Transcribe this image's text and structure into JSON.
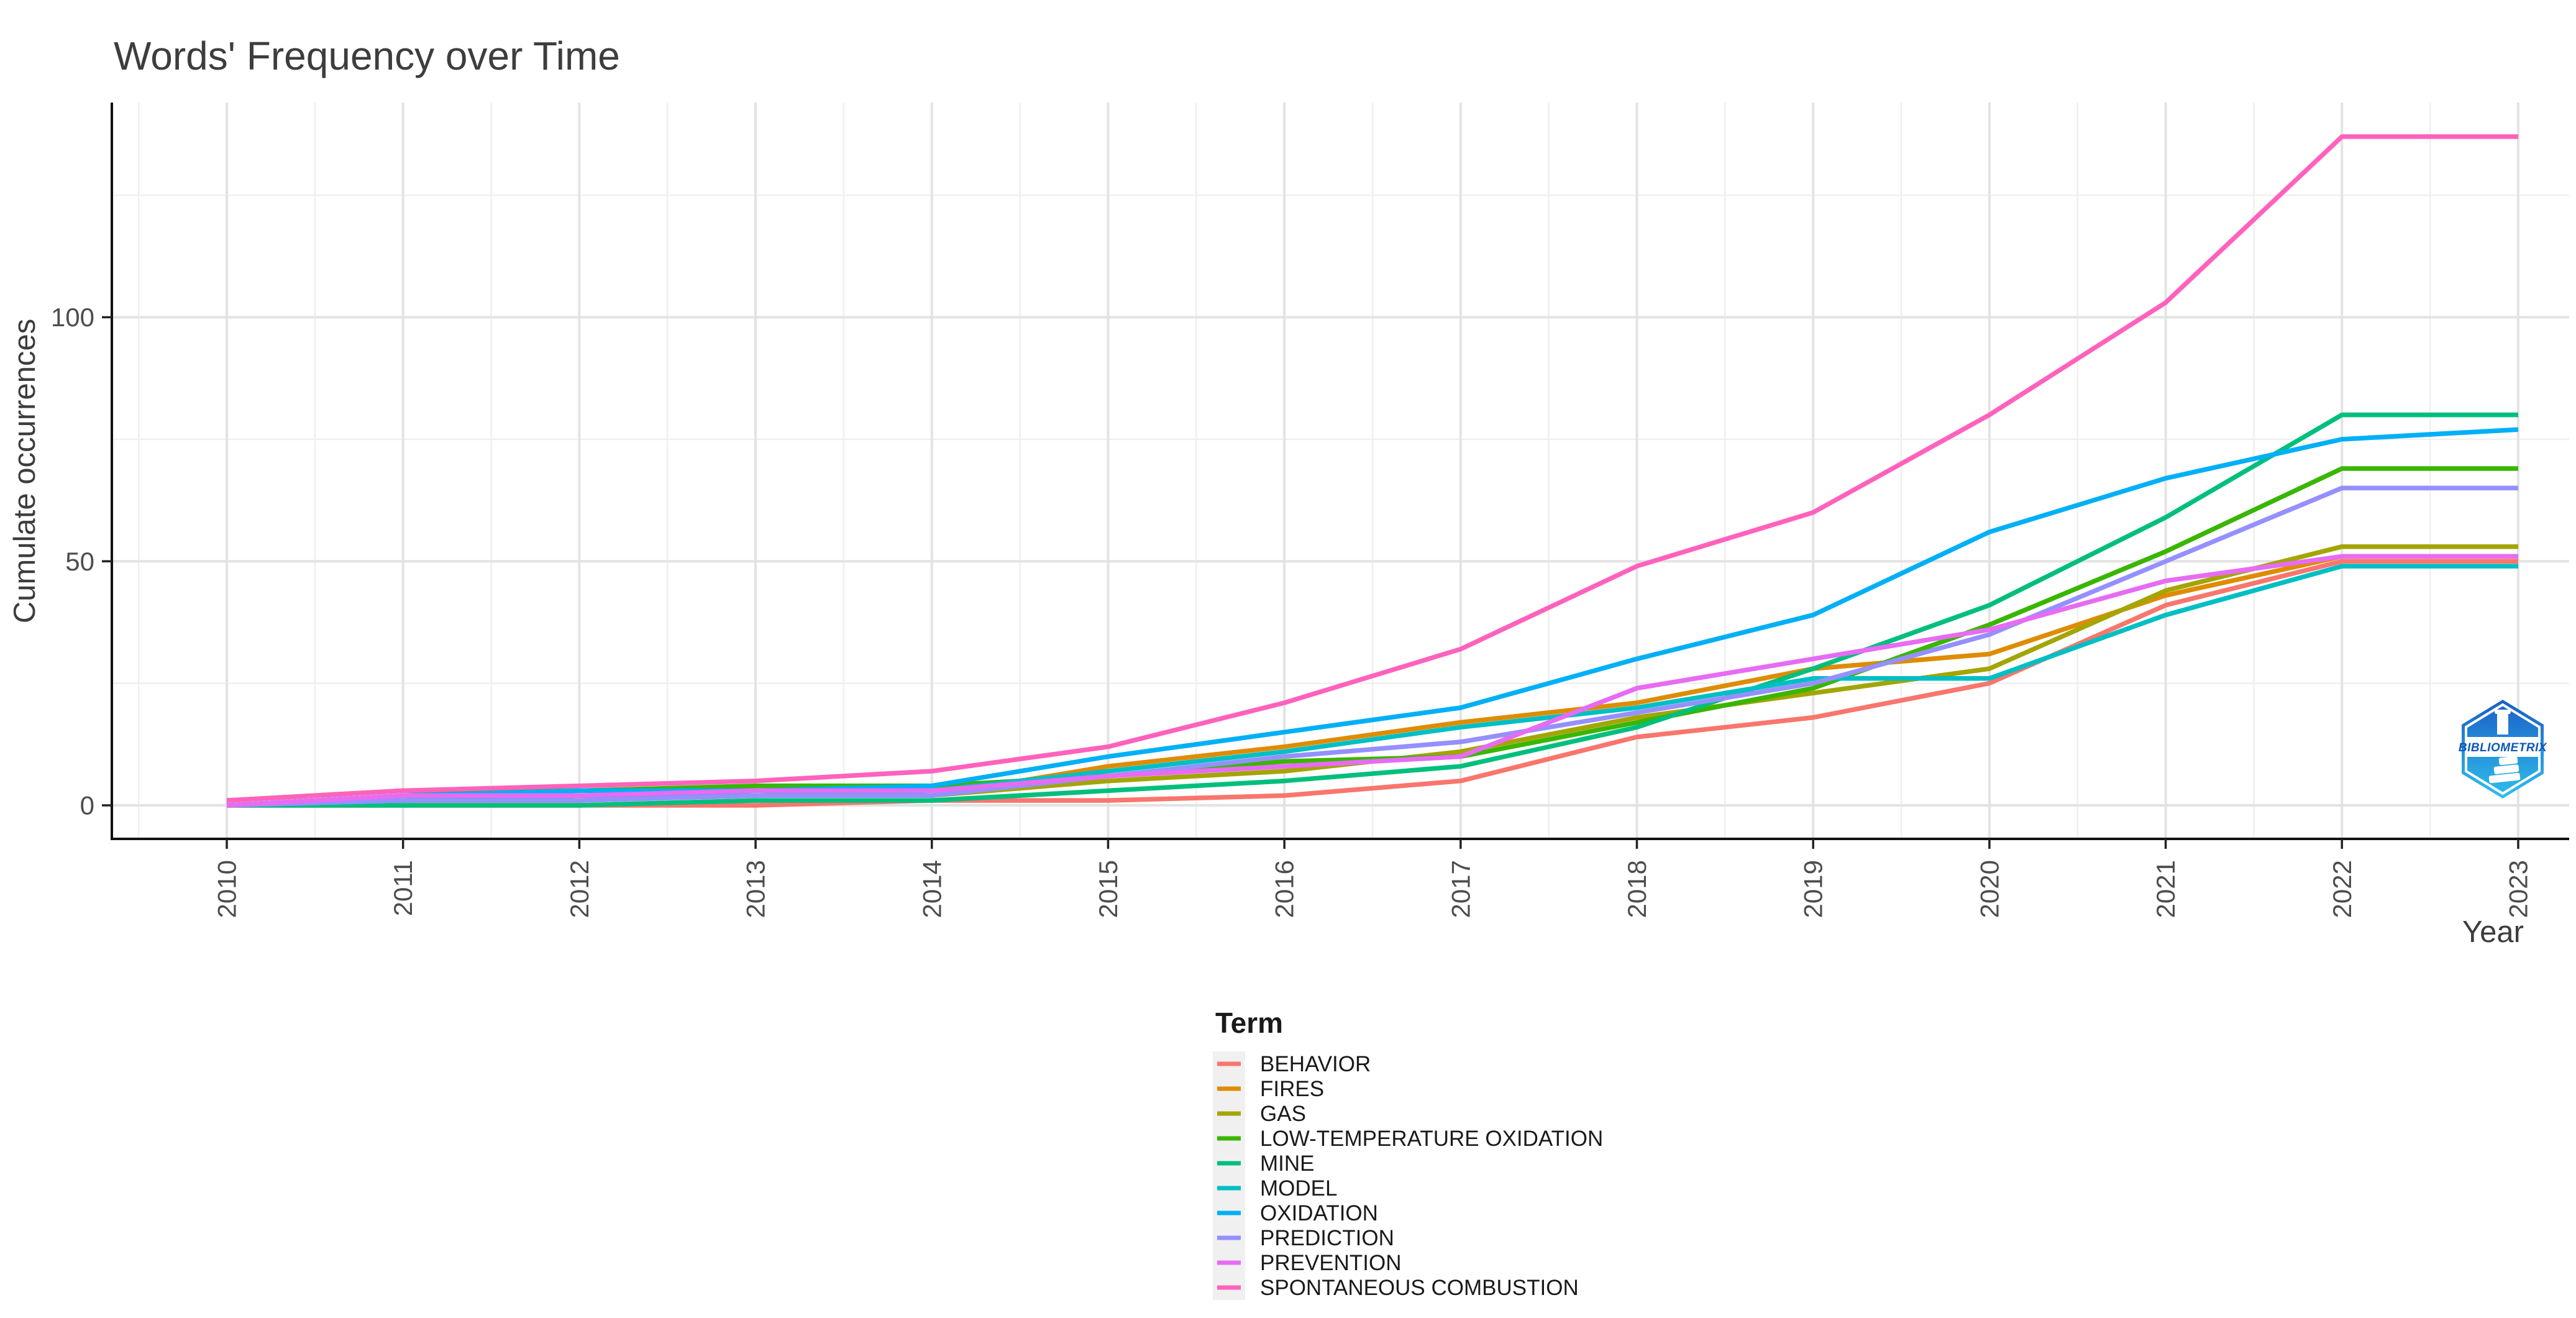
{
  "title": "Words' Frequency over Time",
  "x_axis": {
    "title": "Year",
    "ticks": [
      "2010",
      "2011",
      "2012",
      "2013",
      "2014",
      "2015",
      "2016",
      "2017",
      "2018",
      "2019",
      "2020",
      "2021",
      "2022",
      "2023"
    ]
  },
  "y_axis": {
    "title": "Cumulate occurrences",
    "ticks": [
      0,
      50,
      100
    ]
  },
  "legend": {
    "title": "Term"
  },
  "logo_text": "BIBLIOMETRIX",
  "colors": {
    "axis_text": "#4d4d4d",
    "grid_major": "#e3e3e3",
    "grid_minor": "#efefef",
    "logo_blue_top": "#1b5ec6",
    "logo_blue_bottom": "#2fc0ec"
  },
  "chart_data": {
    "type": "line",
    "title": "Words' Frequency over Time",
    "xlabel": "Year",
    "ylabel": "Cumulate occurrences",
    "x": [
      2010,
      2011,
      2012,
      2013,
      2014,
      2015,
      2016,
      2017,
      2018,
      2019,
      2020,
      2021,
      2022,
      2023
    ],
    "ylim": [
      -7,
      144
    ],
    "yticks": [
      0,
      50,
      100
    ],
    "grid": true,
    "legend_position": "bottom",
    "series": [
      {
        "name": "BEHAVIOR",
        "color": "#F8766D",
        "values": [
          0,
          0,
          0,
          0,
          1,
          1,
          2,
          5,
          14,
          18,
          25,
          41,
          50,
          50
        ]
      },
      {
        "name": "FIRES",
        "color": "#DE8C00",
        "values": [
          0,
          1,
          1,
          2,
          2,
          8,
          12,
          17,
          21,
          28,
          31,
          43,
          51,
          51
        ]
      },
      {
        "name": "GAS",
        "color": "#A3A500",
        "values": [
          0,
          1,
          2,
          2,
          2,
          5,
          7,
          11,
          18,
          23,
          28,
          44,
          53,
          53
        ]
      },
      {
        "name": "LOW-TEMPERATURE OXIDATION",
        "color": "#39B600",
        "values": [
          1,
          3,
          3,
          4,
          4,
          6,
          9,
          10,
          17,
          24,
          37,
          52,
          69,
          69
        ]
      },
      {
        "name": "MINE",
        "color": "#00BF7D",
        "values": [
          0,
          0,
          0,
          1,
          1,
          3,
          5,
          8,
          16,
          28,
          41,
          59,
          80,
          80
        ]
      },
      {
        "name": "MODEL",
        "color": "#00BFC4",
        "values": [
          0,
          1,
          2,
          2,
          3,
          7,
          11,
          16,
          20,
          26,
          26,
          39,
          49,
          49
        ]
      },
      {
        "name": "OXIDATION",
        "color": "#00B0F6",
        "values": [
          0,
          2,
          3,
          3,
          4,
          10,
          15,
          20,
          30,
          39,
          56,
          67,
          75,
          77
        ]
      },
      {
        "name": "PREDICTION",
        "color": "#9590FF",
        "values": [
          0,
          1,
          1,
          2,
          2,
          6,
          10,
          13,
          19,
          25,
          35,
          50,
          65,
          65
        ]
      },
      {
        "name": "PREVENTION",
        "color": "#E76BF3",
        "values": [
          0,
          2,
          2,
          3,
          3,
          6,
          8,
          10,
          24,
          30,
          36,
          46,
          51,
          51
        ]
      },
      {
        "name": "SPONTANEOUS COMBUSTION",
        "color": "#FF62BC",
        "values": [
          1,
          3,
          4,
          5,
          7,
          12,
          21,
          32,
          49,
          60,
          80,
          103,
          137,
          137
        ]
      }
    ]
  }
}
